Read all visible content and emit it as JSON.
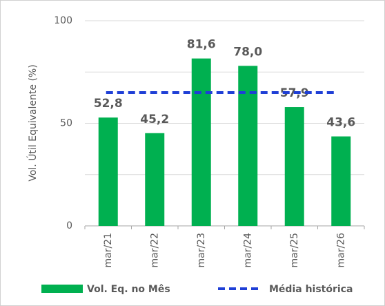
{
  "chart_data": {
    "type": "bar",
    "categories": [
      "mar/21",
      "mar/22",
      "mar/23",
      "mar/24",
      "mar/25",
      "mar/26"
    ],
    "series": [
      {
        "name": "Vol. Eq. no Mês",
        "color": "#00b050",
        "values": [
          52.8,
          45.2,
          81.6,
          78.0,
          57.9,
          43.6
        ],
        "value_labels": [
          "52,8",
          "45,2",
          "81,6",
          "78,0",
          "57,9",
          "43,6"
        ]
      }
    ],
    "reference_line": {
      "name": "Média histórica",
      "value": 65,
      "color": "#1f3fd6"
    },
    "y_label": "Vol. Útil Equivalente (%)",
    "ylim": [
      0,
      100
    ],
    "yticks": [
      0,
      50,
      100
    ],
    "minor_yticks": [
      25,
      75
    ],
    "grid": true,
    "legend": "bottom"
  }
}
